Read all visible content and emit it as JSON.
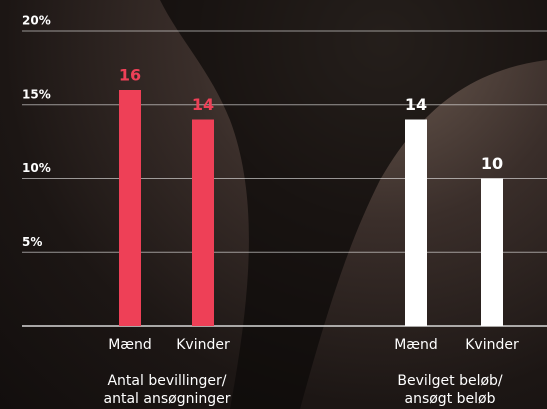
{
  "chart_data": {
    "type": "bar",
    "categories": [
      "Mænd",
      "Kvinder",
      "Mænd",
      "Kvinder"
    ],
    "values": [
      16,
      14,
      14,
      10
    ],
    "colors": [
      "#ee4057",
      "#ee4057",
      "#ffffff",
      "#ffffff"
    ],
    "groups": [
      {
        "lines": [
          "Antal bevillinger/",
          "antal ansøgninger"
        ]
      },
      {
        "lines": [
          "Bevilget beløb/",
          "ansøgt beløb"
        ]
      }
    ],
    "ylim": [
      0,
      20
    ],
    "yticks": [
      {
        "value": 5,
        "label": "5%"
      },
      {
        "value": 10,
        "label": "10%"
      },
      {
        "value": 15,
        "label": "15%"
      },
      {
        "value": 20,
        "label": "20%"
      }
    ],
    "grid": true
  }
}
